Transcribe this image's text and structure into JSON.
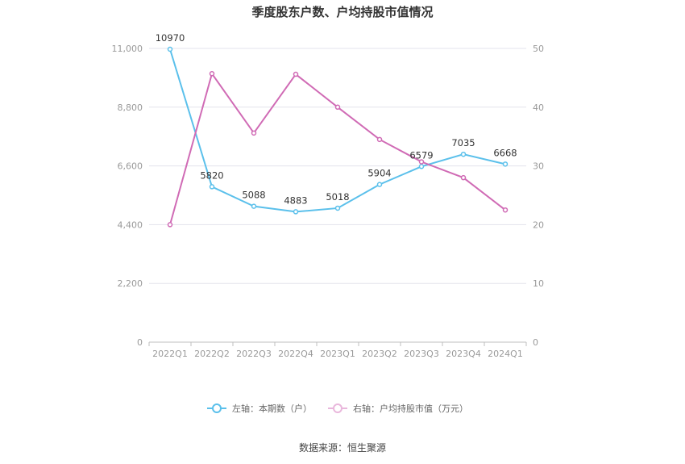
{
  "chart_data": {
    "type": "line",
    "title": "季度股东户数、户均持股市值情况",
    "categories": [
      "2022Q1",
      "2022Q2",
      "2022Q3",
      "2022Q4",
      "2023Q1",
      "2023Q2",
      "2023Q3",
      "2023Q4",
      "2024Q1"
    ],
    "series": [
      {
        "name": "左轴：本期数（户）",
        "axis": "left",
        "color": "#5bc0eb",
        "values": [
          10970,
          5820,
          5088,
          4883,
          5018,
          5904,
          6579,
          7035,
          6668
        ],
        "labels": [
          "10970",
          "5820",
          "5088",
          "4883",
          "5018",
          "5904",
          "6579",
          "7035",
          "6668"
        ]
      },
      {
        "name": "右轴：户均持股市值（万元）",
        "axis": "right",
        "color": "#d06bb5",
        "values": [
          20.0,
          45.7,
          35.6,
          45.6,
          40.0,
          34.5,
          30.7,
          28.0,
          22.5
        ]
      }
    ],
    "left_axis": {
      "min": 0,
      "max": 11000,
      "ticks": [
        0,
        2200,
        4400,
        6600,
        8800,
        11000
      ],
      "tick_labels": [
        "0",
        "2,200",
        "4,400",
        "6,600",
        "8,800",
        "11,000"
      ]
    },
    "right_axis": {
      "min": 0,
      "max": 50,
      "ticks": [
        0,
        10,
        20,
        30,
        40,
        50
      ],
      "tick_labels": [
        "0",
        "10",
        "20",
        "30",
        "40",
        "50"
      ]
    },
    "grid": true,
    "legend_position": "bottom-center"
  },
  "footer": {
    "source": "数据来源：恒生聚源"
  }
}
